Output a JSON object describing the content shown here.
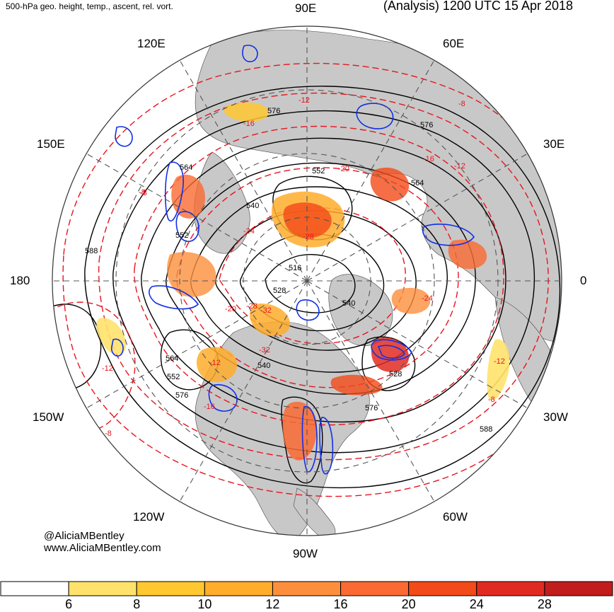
{
  "header": {
    "left_title": "500-hPa geo. height, temp., ascent, rel. vort.",
    "right_title": "(Analysis) 1200 UTC 15 Apr 2018"
  },
  "longitude_labels": {
    "n": "90E",
    "ne": "60E",
    "e_upper": "30E",
    "e": "0",
    "se_lower": "30W",
    "se": "60W",
    "s": "90W",
    "sw": "120W",
    "w_lower": "150W",
    "w": "180",
    "nw_upper": "150E",
    "nw": "120E"
  },
  "contour_labels": {
    "height": [
      "576",
      "576",
      "564",
      "564",
      "552",
      "552",
      "540",
      "540",
      "516",
      "528",
      "540",
      "564",
      "552",
      "576",
      "528",
      "576",
      "588",
      "588"
    ],
    "temperature": [
      "-8",
      "-8",
      "-12",
      "-16",
      "-20",
      "-24",
      "-28",
      "-32",
      "-12",
      "-16",
      "-20",
      "-24",
      "-28",
      "-32",
      "-12",
      "-8",
      "-8",
      "-12",
      "-16",
      "-12",
      "-8"
    ]
  },
  "credit": {
    "handle": "@AliciaMBentley",
    "site": "www.AliciaMBentley.com"
  },
  "colorbar": {
    "ticks": [
      "6",
      "8",
      "10",
      "12",
      "16",
      "20",
      "24",
      "28"
    ],
    "colors": [
      "#ffffff",
      "#ffe26b",
      "#ffc830",
      "#ffad2b",
      "#fd8f3c",
      "#fa6a32",
      "#f24a18",
      "#e12b21",
      "#c11d1d"
    ]
  },
  "colors": {
    "land": "#c8c8c8",
    "height_contour": "#000000",
    "temperature_contour": "#e8141e",
    "ascent_contour": "#1030e6",
    "grid": "#555555"
  }
}
